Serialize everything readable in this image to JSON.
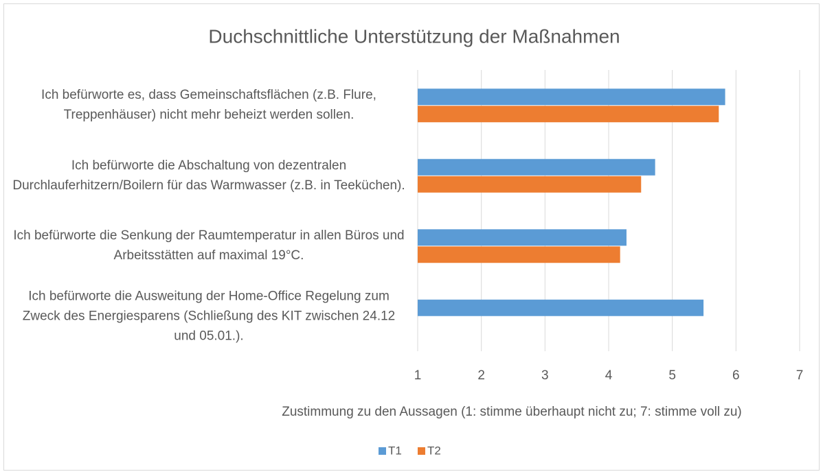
{
  "chart_data": {
    "type": "hbar",
    "title": "Duchschnittliche Unterstützung der Maßnahmen",
    "xlabel": "Zustimmung zu den Aussagen (1: stimme überhaupt nicht zu; 7: stimme voll zu)",
    "categories": [
      "Ich befürworte es, dass Gemeinschaftsflächen (z.B. Flure, Treppenhäuser) nicht mehr beheizt werden sollen.",
      "Ich befürworte die Abschaltung von dezentralen Durchlauferhitzern/Boilern für das Warmwasser (z.B. in Teeküchen).",
      "Ich befürworte die Senkung der Raumtemperatur in allen Büros und Arbeitsstätten auf maximal 19°C.",
      "Ich befürworte die Ausweitung der Home-Office Regelung zum Zweck des Energiesparens (Schließung des KIT zwischen 24.12 und 05.01.)."
    ],
    "series": [
      {
        "name": "T1",
        "color": "#5b9bd5",
        "values": [
          5.83,
          4.73,
          4.28,
          5.49
        ]
      },
      {
        "name": "T2",
        "color": "#ed7d31",
        "values": [
          5.73,
          4.51,
          4.18,
          null
        ]
      }
    ],
    "xlim": [
      1,
      7
    ],
    "xticks": [
      1,
      2,
      3,
      4,
      5,
      6,
      7
    ],
    "grid": true,
    "legend": "bottom"
  }
}
